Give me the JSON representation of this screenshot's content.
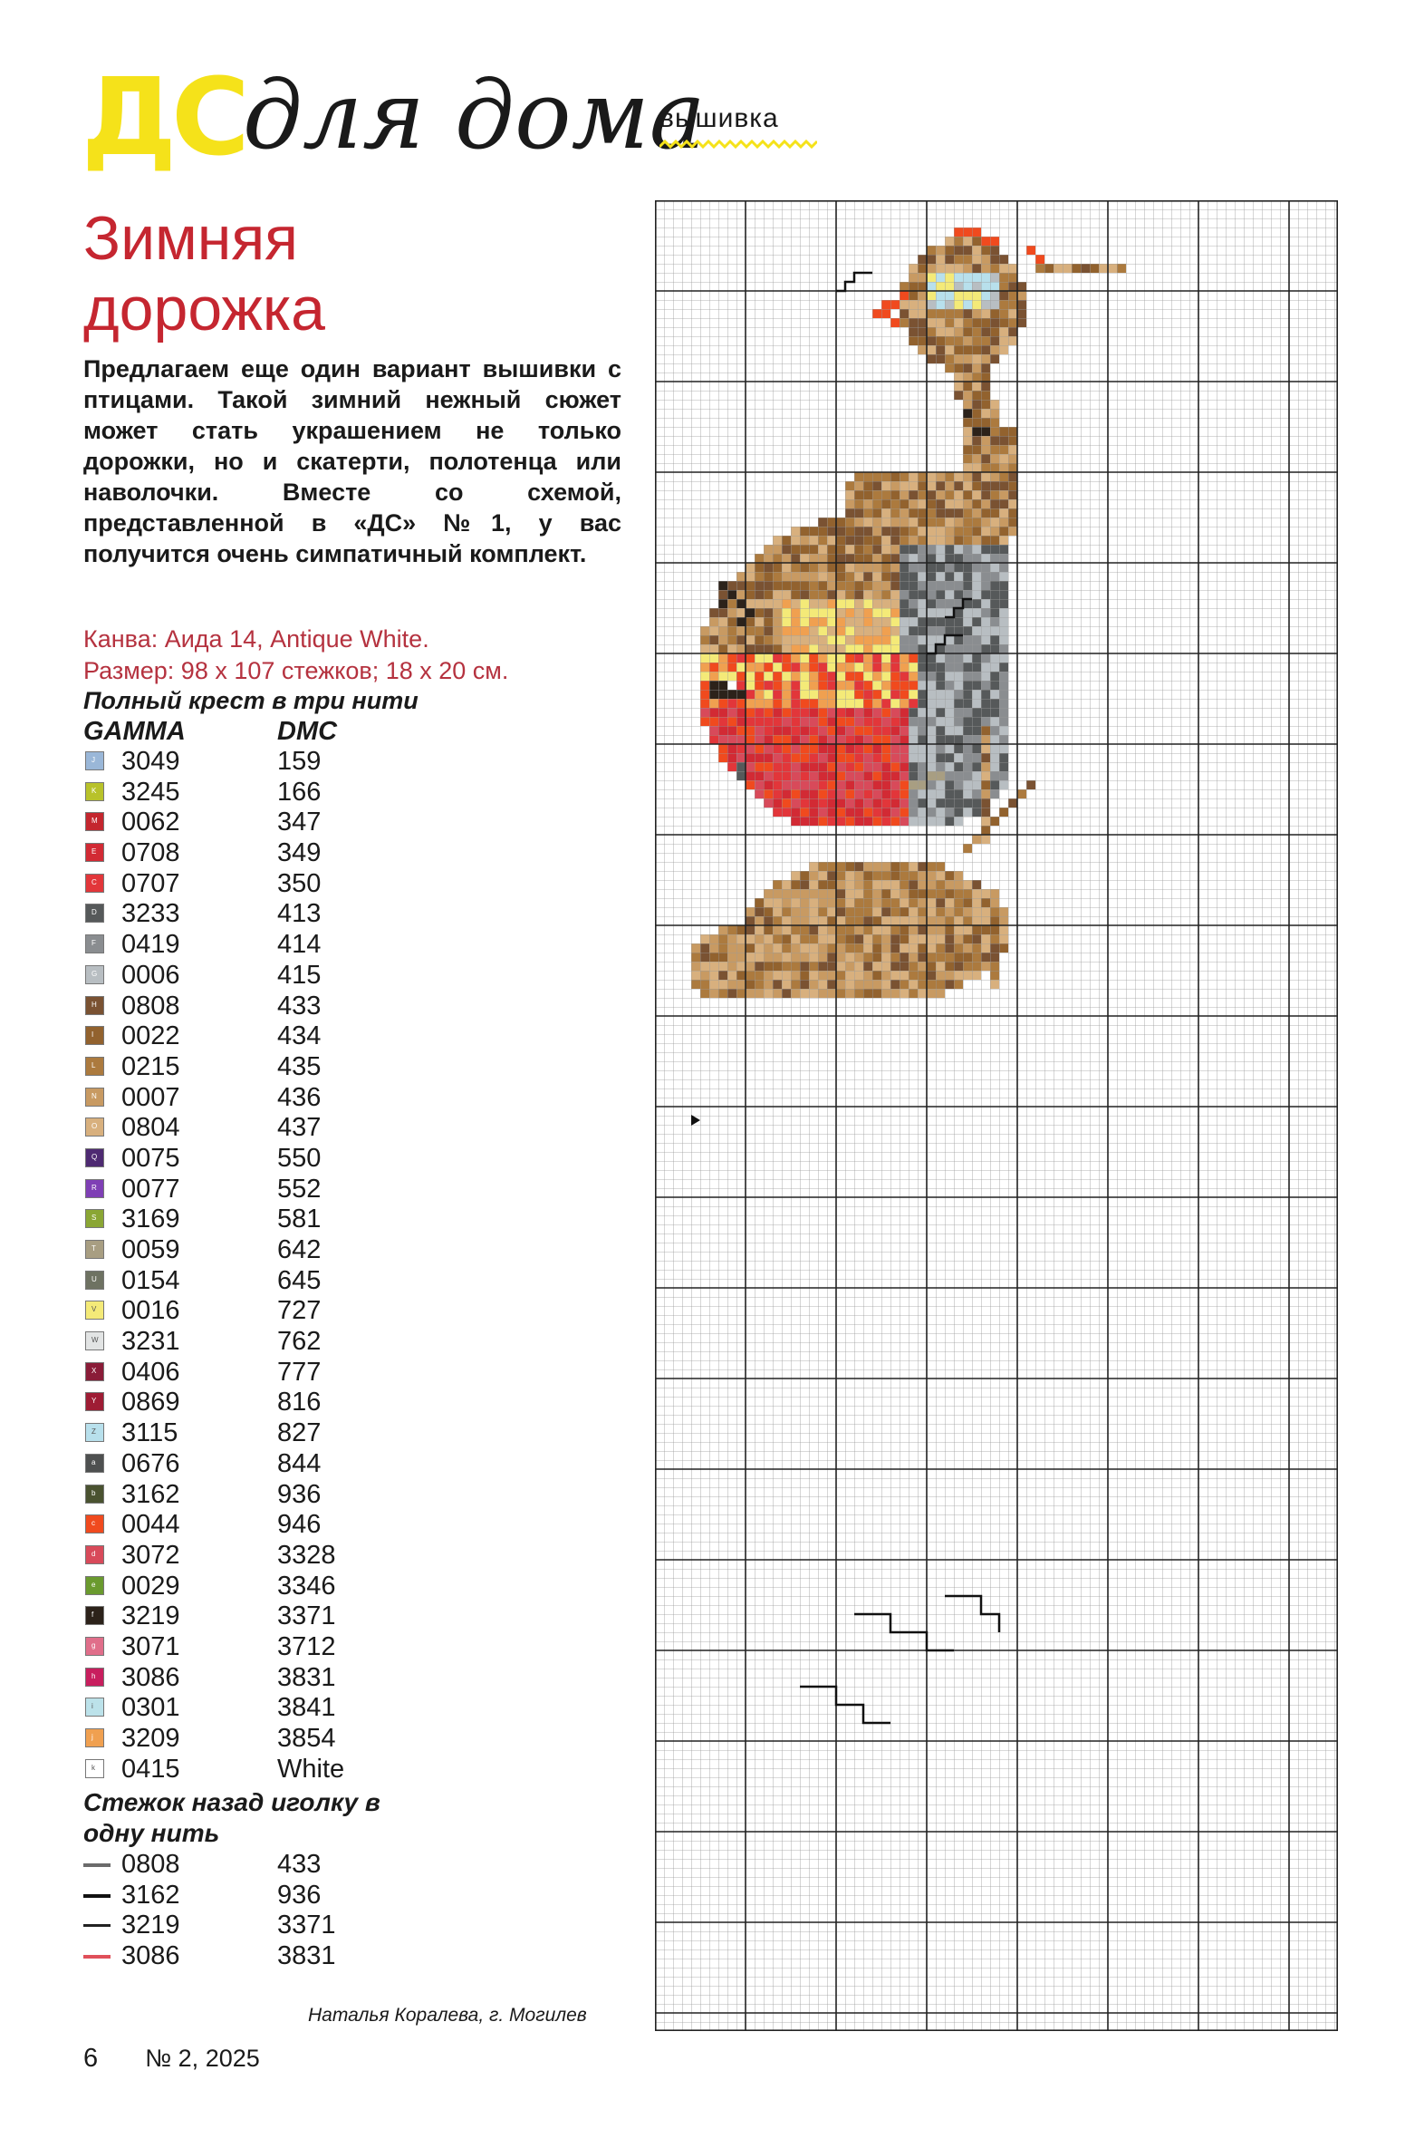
{
  "masthead": {
    "brand": "ДС",
    "script": "для дома",
    "rubric": "вышивка",
    "colors": {
      "brand": "#f5e21a",
      "accent": "#c52630"
    }
  },
  "article": {
    "title_line1": "Зимняя",
    "title_line2": "дорожка",
    "lead": "Предлагаем еще один вариант вышивки с птицами. Такой зимний нежный сюжет может стать украшением не только дорожки, но и скатерти, полотенца или наволочки. Вместе со схемой, представленной в «ДС» №1, у вас получится очень симпатичный комплект.",
    "canvas": "Канва: Аида 14, Antique White.",
    "size": "Размер: 98 х 107 стежков; 18 х 20 см."
  },
  "legend": {
    "heading": "Полный крест в три нити",
    "col_gamma": "GAMMA",
    "col_dmc": "DMC",
    "items": [
      {
        "gamma": "3049",
        "dmc": "159",
        "color": "#9ab7d8",
        "sym": "J"
      },
      {
        "gamma": "3245",
        "dmc": "166",
        "color": "#b8c22a",
        "sym": "K"
      },
      {
        "gamma": "0062",
        "dmc": "347",
        "color": "#c4262e",
        "sym": "M"
      },
      {
        "gamma": "0708",
        "dmc": "349",
        "color": "#d22a34",
        "sym": "E"
      },
      {
        "gamma": "0707",
        "dmc": "350",
        "color": "#e2363a",
        "sym": "C"
      },
      {
        "gamma": "3233",
        "dmc": "413",
        "color": "#56595a",
        "sym": "D"
      },
      {
        "gamma": "0419",
        "dmc": "414",
        "color": "#8a8d90",
        "sym": "F"
      },
      {
        "gamma": "0006",
        "dmc": "415",
        "color": "#b8bec2",
        "sym": "G"
      },
      {
        "gamma": "0808",
        "dmc": "433",
        "color": "#7a5232",
        "sym": "H"
      },
      {
        "gamma": "0022",
        "dmc": "434",
        "color": "#92622e",
        "sym": "I"
      },
      {
        "gamma": "0215",
        "dmc": "435",
        "color": "#ac7a3e",
        "sym": "L"
      },
      {
        "gamma": "0007",
        "dmc": "436",
        "color": "#c89a62",
        "sym": "N"
      },
      {
        "gamma": "0804",
        "dmc": "437",
        "color": "#d8b07e",
        "sym": "O"
      },
      {
        "gamma": "0075",
        "dmc": "550",
        "color": "#4e2a72",
        "sym": "Q"
      },
      {
        "gamma": "0077",
        "dmc": "552",
        "color": "#7f3fb5",
        "sym": "R"
      },
      {
        "gamma": "3169",
        "dmc": "581",
        "color": "#8aa634",
        "sym": "S"
      },
      {
        "gamma": "0059",
        "dmc": "642",
        "color": "#a89e82",
        "sym": "T"
      },
      {
        "gamma": "0154",
        "dmc": "645",
        "color": "#6e7262",
        "sym": "U"
      },
      {
        "gamma": "0016",
        "dmc": "727",
        "color": "#f4ea78",
        "sym": "V"
      },
      {
        "gamma": "3231",
        "dmc": "762",
        "color": "#e2e4e4",
        "sym": "W"
      },
      {
        "gamma": "0406",
        "dmc": "777",
        "color": "#8a1c38",
        "sym": "X"
      },
      {
        "gamma": "0869",
        "dmc": "816",
        "color": "#9e1c34",
        "sym": "Y"
      },
      {
        "gamma": "3115",
        "dmc": "827",
        "color": "#b8e0ec",
        "sym": "Z"
      },
      {
        "gamma": "0676",
        "dmc": "844",
        "color": "#4e5050",
        "sym": "a"
      },
      {
        "gamma": "3162",
        "dmc": "936",
        "color": "#4a5230",
        "sym": "b"
      },
      {
        "gamma": "0044",
        "dmc": "946",
        "color": "#f04a1e",
        "sym": "c"
      },
      {
        "gamma": "3072",
        "dmc": "3328",
        "color": "#d84a5a",
        "sym": "d"
      },
      {
        "gamma": "0029",
        "dmc": "3346",
        "color": "#6a9a2e",
        "sym": "e"
      },
      {
        "gamma": "3219",
        "dmc": "3371",
        "color": "#2c221a",
        "sym": "f"
      },
      {
        "gamma": "3071",
        "dmc": "3712",
        "color": "#e06e8a",
        "sym": "g"
      },
      {
        "gamma": "3086",
        "dmc": "3831",
        "color": "#c81e5e",
        "sym": "h"
      },
      {
        "gamma": "0301",
        "dmc": "3841",
        "color": "#bce2ea",
        "sym": "i"
      },
      {
        "gamma": "3209",
        "dmc": "3854",
        "color": "#f0a050",
        "sym": "j"
      },
      {
        "gamma": "0415",
        "dmc": "White",
        "color": "#ffffff",
        "sym": "k"
      }
    ]
  },
  "backstitch": {
    "heading_line1": "Стежок назад иголку в",
    "heading_line2": "одну нить",
    "items": [
      {
        "gamma": "0808",
        "dmc": "433",
        "color": "#6b6b6b"
      },
      {
        "gamma": "3162",
        "dmc": "936",
        "color": "#111111"
      },
      {
        "gamma": "3219",
        "dmc": "3371",
        "color": "#222222"
      },
      {
        "gamma": "3086",
        "dmc": "3831",
        "color": "#e0505a"
      }
    ]
  },
  "footer": {
    "author": "Наталья Коралева, г. Могилев",
    "page": "6",
    "issue": "№ 2, 2025"
  },
  "chart": {
    "type": "cross-stitch-pattern",
    "subject": "robin on branch with leaves"
  }
}
